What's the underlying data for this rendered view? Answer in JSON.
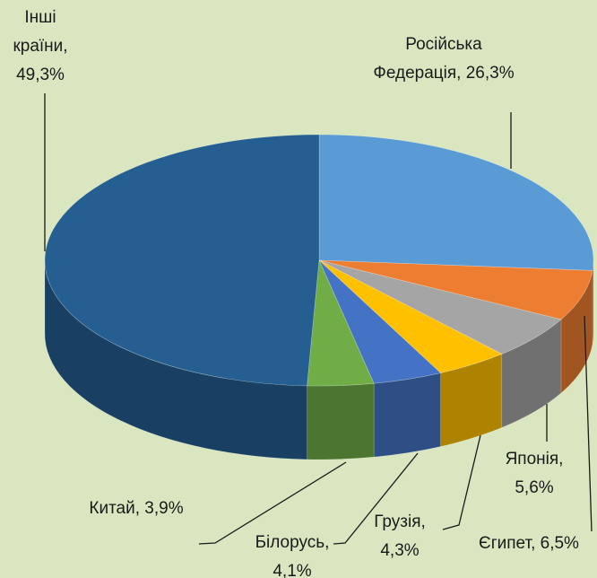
{
  "chart_data": {
    "type": "pie",
    "values": [
      26.3,
      6.5,
      5.6,
      4.3,
      4.1,
      3.9,
      49.3
    ],
    "value_labels": [
      [
        "Російська",
        "Федерація, 26,3%"
      ],
      [
        "Єгипет, 6,5%"
      ],
      [
        "Японія,",
        "5,6%"
      ],
      [
        "Грузія,",
        "4,3%"
      ],
      [
        "Білорусь,",
        "4,1%"
      ],
      [
        "Китай, 3,9%"
      ],
      [
        "Інші",
        "країни,",
        "49,3%"
      ]
    ],
    "colors": [
      "#5b9bd5",
      "#ed7d31",
      "#a5a5a5",
      "#ffc000",
      "#4472c4",
      "#70ad47",
      "#255e91"
    ]
  }
}
